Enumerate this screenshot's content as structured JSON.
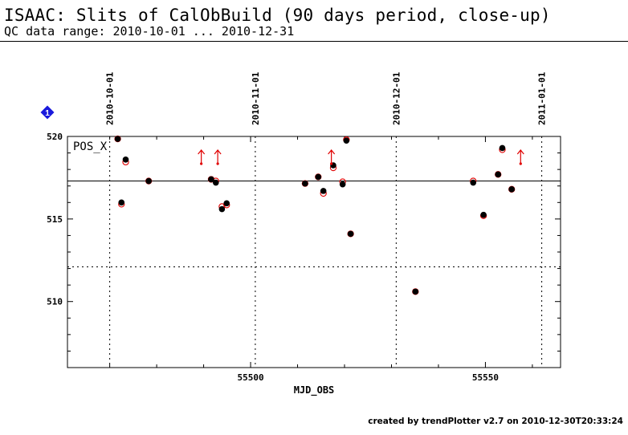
{
  "header": {
    "title": "ISAAC: Slits of CalObBuild (90 days period, close-up)",
    "subtitle": "QC data range: 2010-10-01 ... 2010-12-31"
  },
  "footer": {
    "credit": "created by trendPlotter v2.7 on 2010-12-30T20:33:24"
  },
  "badge": {
    "text": "1",
    "color": "#1a1adc"
  },
  "chart_data": {
    "type": "scatter",
    "panel_label": "POS_X",
    "xlabel": "MJD_OBS",
    "ylabel": "",
    "xlim": [
      55461,
      55566
    ],
    "ylim": [
      506,
      520
    ],
    "x_ticks": [
      55500,
      55550
    ],
    "y_ticks": [
      510,
      515,
      520
    ],
    "top_date_ticks": [
      {
        "label": "2010-10-01",
        "x": 55470
      },
      {
        "label": "2010-11-01",
        "x": 55501
      },
      {
        "label": "2010-12-01",
        "x": 55531
      },
      {
        "label": "2011-01-01",
        "x": 55562
      }
    ],
    "reference_line": 517.3,
    "lower_dotted_line": 512.1,
    "colors": {
      "filled": "#000000",
      "open": "#e00000",
      "arrow": "#e00000"
    },
    "series": [
      {
        "marker": "filled-circle",
        "points": [
          [
            55471.7,
            519.85
          ],
          [
            55472.5,
            516.0
          ],
          [
            55473.4,
            518.6
          ],
          [
            55478.3,
            517.3
          ],
          [
            55491.6,
            517.4
          ],
          [
            55492.6,
            517.2
          ],
          [
            55493.9,
            515.6
          ],
          [
            55494.9,
            515.95
          ],
          [
            55511.6,
            517.15
          ],
          [
            55514.4,
            517.55
          ],
          [
            55515.5,
            516.7
          ],
          [
            55517.6,
            518.25
          ],
          [
            55519.6,
            517.1
          ],
          [
            55520.4,
            519.75
          ],
          [
            55521.3,
            514.1
          ],
          [
            55535.1,
            510.6
          ],
          [
            55547.4,
            517.2
          ],
          [
            55549.6,
            515.25
          ],
          [
            55552.7,
            517.7
          ],
          [
            55553.6,
            519.3
          ],
          [
            55555.6,
            516.8
          ]
        ]
      },
      {
        "marker": "open-circle",
        "points": [
          [
            55471.7,
            519.85
          ],
          [
            55472.5,
            515.9
          ],
          [
            55473.4,
            518.45
          ],
          [
            55478.3,
            517.3
          ],
          [
            55491.6,
            517.4
          ],
          [
            55492.6,
            517.3
          ],
          [
            55493.9,
            515.75
          ],
          [
            55494.9,
            515.85
          ],
          [
            55511.6,
            517.15
          ],
          [
            55514.4,
            517.55
          ],
          [
            55515.5,
            516.55
          ],
          [
            55517.6,
            518.1
          ],
          [
            55519.6,
            517.25
          ],
          [
            55520.4,
            519.8
          ],
          [
            55521.3,
            514.1
          ],
          [
            55535.1,
            510.6
          ],
          [
            55547.4,
            517.3
          ],
          [
            55549.6,
            515.2
          ],
          [
            55552.7,
            517.7
          ],
          [
            55553.6,
            519.2
          ],
          [
            55555.6,
            516.8
          ]
        ]
      }
    ],
    "off_scale_arrows_x": [
      55489.5,
      55493.0,
      55517.2,
      55557.5
    ]
  }
}
